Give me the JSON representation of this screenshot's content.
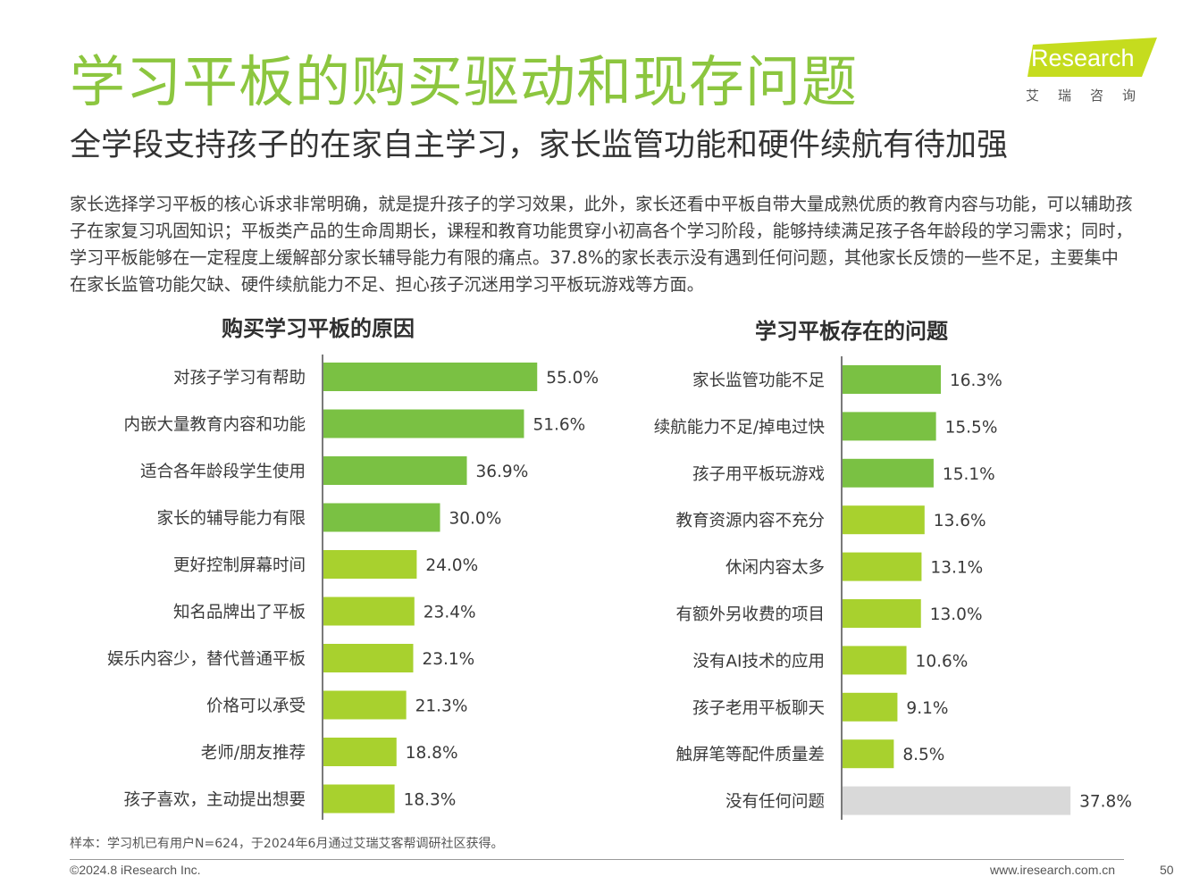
{
  "header": {
    "title": "学习平板的购买驱动和现存问题",
    "subtitle": "全学段支持孩子的在家自主学习，家长监管功能和硬件续航有待加强"
  },
  "logo": {
    "text": "iResearch",
    "subtext": "艾瑞咨询"
  },
  "intro": "家长选择学习平板的核心诉求非常明确，就是提升孩子的学习效果，此外，家长还看中平板自带大量成熟优质的教育内容与功能，可以辅助孩子在家复习巩固知识；平板类产品的生命周期长，课程和教育功能贯穿小初高各个学习阶段，能够持续满足孩子各年龄段的学习需求；同时，学习平板能够在一定程度上缓解部分家长辅导能力有限的痛点。37.8%的家长表示没有遇到任何问题，其他家长反馈的一些不足，主要集中在家长监管功能欠缺、硬件续航能力不足、担心孩子沉迷用学习平板玩游戏等方面。",
  "colors": {
    "accent": "#8cc63f",
    "bar_dark": "#7ac143",
    "bar_light": "#a8d12e",
    "bar_gray": "#d9d9d9",
    "axis": "#333333"
  },
  "chart_data": [
    {
      "type": "bar",
      "orientation": "horizontal",
      "title": "购买学习平板的原因",
      "categories": [
        "对孩子学习有帮助",
        "内嵌大量教育内容和功能",
        "适合各年龄段学生使用",
        "家长的辅导能力有限",
        "更好控制屏幕时间",
        "知名品牌出了平板",
        "娱乐内容少，替代普通平板",
        "价格可以承受",
        "老师/朋友推荐",
        "孩子喜欢，主动提出想要"
      ],
      "values": [
        55.0,
        51.6,
        36.9,
        30.0,
        24.0,
        23.4,
        23.1,
        21.3,
        18.8,
        18.3
      ],
      "labels": [
        "55.0%",
        "51.6%",
        "36.9%",
        "30.0%",
        "24.0%",
        "23.4%",
        "23.1%",
        "21.3%",
        "18.8%",
        "18.3%"
      ],
      "color_groups": [
        "dark",
        "dark",
        "dark",
        "dark",
        "light",
        "light",
        "light",
        "light",
        "light",
        "light"
      ],
      "unit": "%"
    },
    {
      "type": "bar",
      "orientation": "horizontal",
      "title": "学习平板存在的问题",
      "categories": [
        "家长监管功能不足",
        "续航能力不足/掉电过快",
        "孩子用平板玩游戏",
        "教育资源内容不充分",
        "休闲内容太多",
        "有额外另收费的项目",
        "没有AI技术的应用",
        "孩子老用平板聊天",
        "触屏笔等配件质量差",
        "没有任何问题"
      ],
      "values": [
        16.3,
        15.5,
        15.1,
        13.6,
        13.1,
        13.0,
        10.6,
        9.1,
        8.5,
        37.8
      ],
      "labels": [
        "16.3%",
        "15.5%",
        "15.1%",
        "13.6%",
        "13.1%",
        "13.0%",
        "10.6%",
        "9.1%",
        "8.5%",
        "37.8%"
      ],
      "color_groups": [
        "dark",
        "dark",
        "dark",
        "light",
        "light",
        "light",
        "light",
        "light",
        "light",
        "gray"
      ],
      "unit": "%"
    }
  ],
  "footer": {
    "note": "样本：学习机已有用户N=624，于2024年6月通过艾瑞艾客帮调研社区获得。",
    "copyright": "©2024.8 iResearch Inc.",
    "website": "www.iresearch.com.cn",
    "page": "50"
  }
}
